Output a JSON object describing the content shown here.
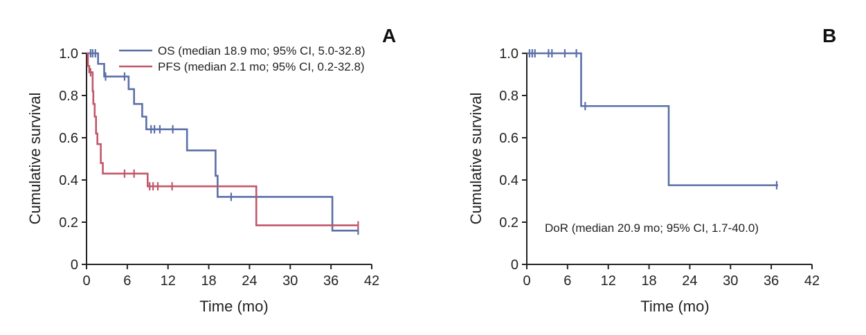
{
  "chart_data": [
    {
      "type": "line",
      "panel_label": "A",
      "xlabel": "Time (mo)",
      "ylabel": "Cumulative survival",
      "xlim": [
        0,
        42
      ],
      "ylim": [
        0,
        1.0
      ],
      "xticks": [
        0,
        6,
        12,
        18,
        24,
        30,
        36,
        42
      ],
      "xtick_labels": [
        "0",
        "6",
        "12",
        "18",
        "24",
        "30",
        "36",
        "42"
      ],
      "yticks": [
        0,
        0.2,
        0.4,
        0.6,
        0.8,
        1.0
      ],
      "ytick_labels": [
        "0",
        "0.2",
        "0.4",
        "0.6",
        "0.8",
        "1.0"
      ],
      "legend_position": "top-right",
      "series": [
        {
          "name": "OS (median 18.9 mo; 95% CI, 5.0-32.8)",
          "color": "#5a6fa8",
          "steps": [
            [
              0,
              1.0
            ],
            [
              1.7,
              0.95
            ],
            [
              2.6,
              0.89
            ],
            [
              6.2,
              0.83
            ],
            [
              7.0,
              0.76
            ],
            [
              8.2,
              0.7
            ],
            [
              8.8,
              0.64
            ],
            [
              14.8,
              0.54
            ],
            [
              19.0,
              0.42
            ],
            [
              19.3,
              0.32
            ],
            [
              36.2,
              0.16
            ],
            [
              40.0,
              0.16
            ]
          ],
          "censor": [
            [
              0.6,
              1.0
            ],
            [
              0.9,
              1.0
            ],
            [
              1.3,
              1.0
            ],
            [
              2.8,
              0.89
            ],
            [
              5.6,
              0.89
            ],
            [
              9.5,
              0.64
            ],
            [
              10.0,
              0.64
            ],
            [
              10.8,
              0.64
            ],
            [
              12.7,
              0.64
            ],
            [
              21.3,
              0.32
            ],
            [
              40.0,
              0.16
            ]
          ]
        },
        {
          "name": "PFS (median 2.1 mo; 95% CI, 0.2-32.8)",
          "color": "#c0576a",
          "steps": [
            [
              0,
              1.0
            ],
            [
              0.2,
              0.94
            ],
            [
              0.4,
              0.91
            ],
            [
              0.9,
              0.82
            ],
            [
              1.0,
              0.76
            ],
            [
              1.2,
              0.7
            ],
            [
              1.4,
              0.62
            ],
            [
              1.6,
              0.57
            ],
            [
              2.1,
              0.48
            ],
            [
              2.4,
              0.43
            ],
            [
              3.1,
              0.43
            ],
            [
              9.0,
              0.37
            ],
            [
              25.0,
              0.185
            ],
            [
              40.0,
              0.185
            ]
          ],
          "censor": [
            [
              0.6,
              0.91
            ],
            [
              5.6,
              0.43
            ],
            [
              7.0,
              0.43
            ],
            [
              9.3,
              0.37
            ],
            [
              9.8,
              0.37
            ],
            [
              10.5,
              0.37
            ],
            [
              12.6,
              0.37
            ],
            [
              40.0,
              0.185
            ]
          ]
        }
      ]
    },
    {
      "type": "line",
      "panel_label": "B",
      "xlabel": "Time (mo)",
      "ylabel": "Cumulative survival",
      "xlim": [
        0,
        42
      ],
      "ylim": [
        0,
        1.0
      ],
      "xticks": [
        0,
        6,
        12,
        18,
        24,
        30,
        36,
        42
      ],
      "xtick_labels": [
        "0",
        "6",
        "12",
        "18",
        "24",
        "30",
        "36",
        "42"
      ],
      "yticks": [
        0,
        0.2,
        0.4,
        0.6,
        0.8,
        1.0
      ],
      "ytick_labels": [
        "0",
        "0.2",
        "0.4",
        "0.6",
        "0.8",
        "1.0"
      ],
      "annotation": "DoR (median 20.9 mo; 95% CI, 1.7-40.0)",
      "series": [
        {
          "name": "",
          "color": "#5a6fa8",
          "steps": [
            [
              0,
              1.0
            ],
            [
              8.0,
              0.75
            ],
            [
              20.9,
              0.375
            ],
            [
              37.0,
              0.375
            ]
          ],
          "censor": [
            [
              0.4,
              1.0
            ],
            [
              0.8,
              1.0
            ],
            [
              1.2,
              1.0
            ],
            [
              3.2,
              1.0
            ],
            [
              3.7,
              1.0
            ],
            [
              5.6,
              1.0
            ],
            [
              7.3,
              1.0
            ],
            [
              8.6,
              0.75
            ],
            [
              36.8,
              0.375
            ]
          ]
        }
      ]
    }
  ]
}
